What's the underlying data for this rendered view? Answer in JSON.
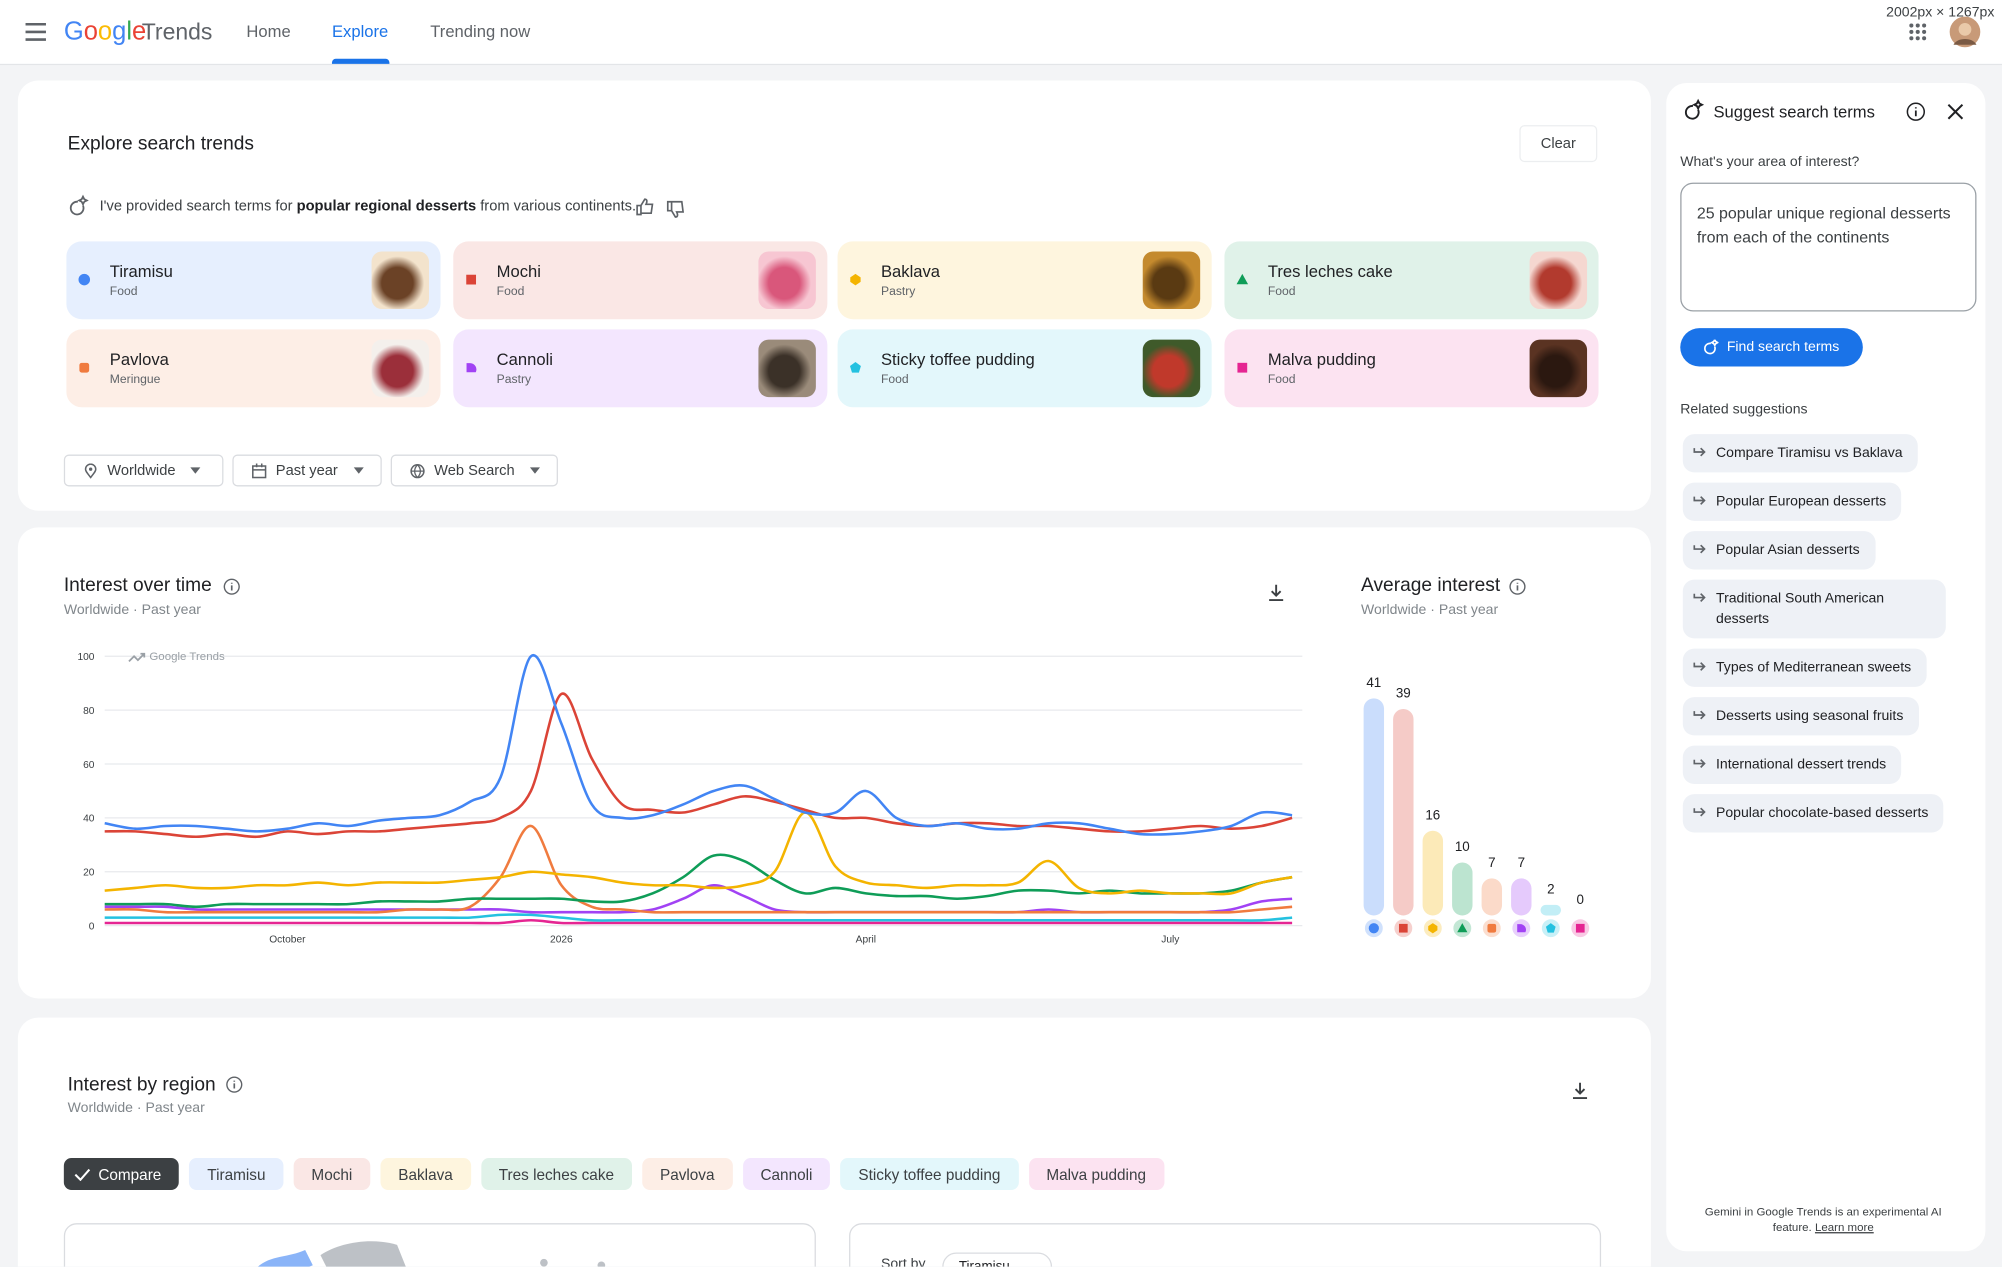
{
  "header": {
    "logo": "Google",
    "product": "Trends",
    "nav": [
      "Home",
      "Explore",
      "Trending now"
    ],
    "size_overlay": "2002px × 1267px"
  },
  "explore": {
    "title": "Explore search trends",
    "clear": "Clear",
    "note": {
      "before": "I've provided search terms for ",
      "bold": "popular regional desserts",
      "after": " from various continents."
    },
    "term_categories": [
      "Food",
      "Food",
      "Pastry",
      "Food",
      "Meringue",
      "Pastry",
      "Food",
      "Food"
    ],
    "filters": [
      "Worldwide",
      "Past year",
      "Web Search"
    ]
  },
  "interest_over_time": {
    "subtitle": "Worldwide · Past year",
    "watermark": "Google Trends"
  },
  "average_interest": {
    "subtitle": "Worldwide · Past year"
  },
  "region": {
    "title": "Interest by region",
    "subtitle": "Worldwide · Past year",
    "compare": "Compare",
    "sort_by": "Sort by"
  },
  "suggest": {
    "title": "Suggest search terms",
    "question": "What's your area of interest?",
    "input": "25 popular unique regional desserts from each of the continents",
    "button": "Find search terms",
    "related_title": "Related suggestions",
    "suggestions": [
      "Compare Tiramisu vs Baklava",
      "Popular European desserts",
      "Popular Asian desserts",
      "Traditional South American desserts",
      "Types of Mediterranean sweets",
      "Desserts using seasonal fruits",
      "International dessert trends",
      "Popular chocolate-based desserts"
    ],
    "footer": "Gemini in Google Trends is an experimental AI feature.",
    "learn_more": "Learn more"
  },
  "chart_data": [
    {
      "type": "line",
      "title": "Interest over time",
      "categories": [
        null,
        null,
        null,
        null,
        null,
        null,
        "October",
        null,
        null,
        null,
        null,
        null,
        null,
        null,
        null,
        "2026",
        null,
        null,
        null,
        null,
        null,
        null,
        null,
        null,
        null,
        "April",
        null,
        null,
        null,
        null,
        null,
        null,
        null,
        null,
        null,
        "July",
        null,
        null,
        null,
        null
      ],
      "ylim": [
        0,
        100
      ],
      "yticks": [
        0,
        20,
        40,
        60,
        80,
        100
      ],
      "grid": true,
      "series": [
        {
          "name": "Tiramisu",
          "color": "#4285f4",
          "values": [
            38,
            36,
            37,
            37,
            36,
            35,
            36,
            38,
            37,
            39,
            40,
            41,
            46,
            55,
            100,
            75,
            45,
            40,
            41,
            45,
            50,
            52,
            47,
            42,
            42,
            50,
            40,
            37,
            38,
            36,
            36,
            38,
            38,
            36,
            34,
            34,
            35,
            37,
            42,
            41
          ]
        },
        {
          "name": "Mochi",
          "color": "#db4437",
          "values": [
            35,
            35,
            34,
            33,
            34,
            33,
            35,
            34,
            35,
            35,
            36,
            37,
            38,
            40,
            50,
            86,
            62,
            45,
            43,
            42,
            45,
            48,
            46,
            43,
            40,
            40,
            38,
            37,
            38,
            38,
            37,
            37,
            36,
            35,
            35,
            36,
            37,
            36,
            37,
            40
          ]
        },
        {
          "name": "Baklava",
          "color": "#f4b400",
          "values": [
            13,
            14,
            15,
            14,
            14,
            15,
            15,
            16,
            15,
            16,
            16,
            16,
            17,
            18,
            20,
            19,
            18,
            16,
            15,
            15,
            14,
            15,
            20,
            42,
            22,
            16,
            15,
            14,
            15,
            15,
            16,
            24,
            14,
            12,
            13,
            12,
            12,
            12,
            16,
            18
          ]
        },
        {
          "name": "Tres leches cake",
          "color": "#0f9d58",
          "values": [
            8,
            8,
            8,
            7,
            8,
            8,
            8,
            8,
            8,
            9,
            9,
            9,
            10,
            10,
            10,
            10,
            9,
            9,
            12,
            18,
            26,
            24,
            17,
            12,
            14,
            12,
            11,
            11,
            10,
            11,
            13,
            13,
            12,
            13,
            12,
            12,
            12,
            13,
            16,
            18
          ]
        },
        {
          "name": "Pavlova",
          "color": "#f07b3f",
          "values": [
            6,
            6,
            5,
            5,
            5,
            5,
            5,
            5,
            5,
            5,
            6,
            6,
            7,
            18,
            37,
            15,
            7,
            6,
            5,
            5,
            5,
            5,
            5,
            5,
            5,
            5,
            5,
            5,
            5,
            5,
            5,
            5,
            5,
            5,
            5,
            5,
            5,
            5,
            6,
            7
          ]
        },
        {
          "name": "Cannoli",
          "color": "#a142f4",
          "values": [
            7,
            7,
            7,
            6,
            6,
            6,
            6,
            6,
            6,
            6,
            6,
            6,
            6,
            6,
            5,
            5,
            5,
            5,
            6,
            10,
            15,
            11,
            6,
            5,
            5,
            5,
            5,
            5,
            5,
            5,
            5,
            6,
            5,
            5,
            5,
            5,
            5,
            6,
            9,
            10
          ]
        },
        {
          "name": "Sticky toffee pudding",
          "color": "#24c1e0",
          "values": [
            3,
            3,
            3,
            3,
            3,
            3,
            3,
            3,
            3,
            3,
            3,
            3,
            3,
            4,
            4,
            3,
            2,
            2,
            2,
            2,
            2,
            2,
            2,
            2,
            2,
            2,
            2,
            2,
            2,
            2,
            2,
            2,
            2,
            2,
            2,
            2,
            2,
            2,
            2,
            3
          ]
        },
        {
          "name": "Malva pudding",
          "color": "#e52592",
          "values": [
            1,
            1,
            1,
            1,
            1,
            1,
            1,
            1,
            1,
            1,
            1,
            1,
            1,
            1,
            2,
            1,
            1,
            1,
            1,
            1,
            1,
            1,
            1,
            1,
            1,
            1,
            1,
            1,
            1,
            1,
            1,
            1,
            1,
            1,
            1,
            1,
            1,
            1,
            1,
            1
          ]
        }
      ]
    },
    {
      "type": "bar",
      "title": "Average interest",
      "values": [
        41,
        39,
        16,
        10,
        7,
        7,
        2,
        0
      ]
    }
  ]
}
